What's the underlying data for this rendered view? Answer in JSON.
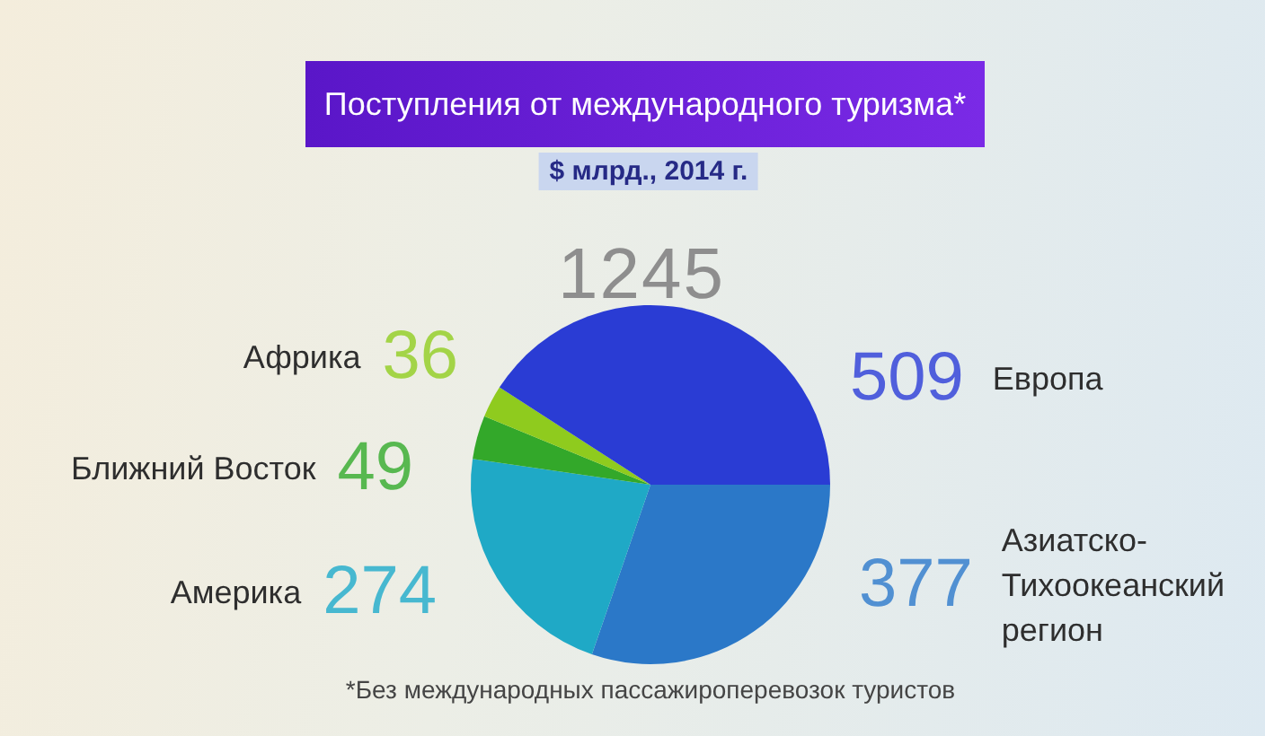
{
  "chart_data": {
    "type": "pie",
    "title": "Поступления от международного туризма*",
    "subtitle": "$ млрд., 2014 г.",
    "categories": [
      "Азиатско-Тихоокеанский регион",
      "Америка",
      "Ближний Восток",
      "Африка",
      "Европа"
    ],
    "values": [
      377,
      274,
      49,
      36,
      509
    ],
    "colors": [
      "#2b78c8",
      "#1fa9c6",
      "#33a82a",
      "#8fcb1e",
      "#2a3cd4"
    ],
    "data_labels": true,
    "annotations": [
      "1245",
      "*Без международных пассажироперевозок туристов"
    ]
  }
}
